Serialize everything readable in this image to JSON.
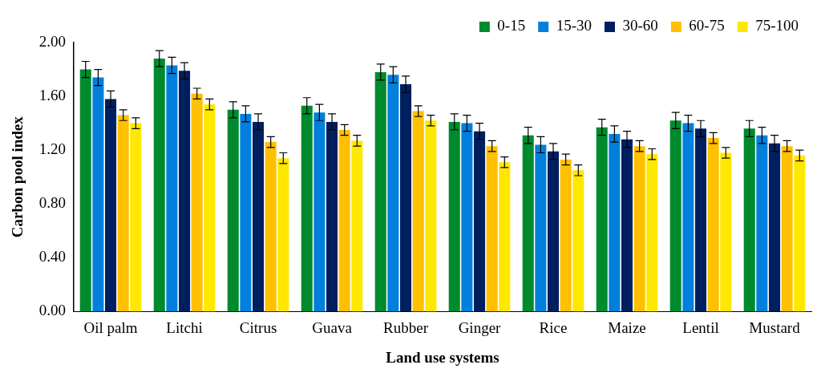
{
  "chart_data": {
    "type": "bar",
    "xlabel": "Land use systems",
    "ylabel": "Carbon pool index",
    "categories": [
      "Oil palm",
      "Litchi",
      "Citrus",
      "Guava",
      "Rubber",
      "Ginger",
      "Rice",
      "Maize",
      "Lentil",
      "Mustard"
    ],
    "series": [
      {
        "name": "0-15",
        "color": "#008a2e",
        "values": [
          1.8,
          1.88,
          1.5,
          1.53,
          1.78,
          1.41,
          1.31,
          1.37,
          1.42,
          1.36
        ],
        "errors": [
          0.06,
          0.06,
          0.06,
          0.06,
          0.06,
          0.06,
          0.06,
          0.06,
          0.06,
          0.06
        ]
      },
      {
        "name": "15-30",
        "color": "#0080dc",
        "values": [
          1.74,
          1.83,
          1.47,
          1.48,
          1.76,
          1.4,
          1.24,
          1.32,
          1.4,
          1.31
        ],
        "errors": [
          0.06,
          0.06,
          0.06,
          0.06,
          0.06,
          0.06,
          0.06,
          0.06,
          0.06,
          0.06
        ]
      },
      {
        "name": "30-60",
        "color": "#001f5f",
        "values": [
          1.58,
          1.79,
          1.41,
          1.41,
          1.69,
          1.34,
          1.19,
          1.28,
          1.36,
          1.25
        ],
        "errors": [
          0.06,
          0.06,
          0.06,
          0.06,
          0.06,
          0.06,
          0.06,
          0.06,
          0.06,
          0.06
        ]
      },
      {
        "name": "60-75",
        "color": "#ffc000",
        "values": [
          1.46,
          1.62,
          1.26,
          1.35,
          1.49,
          1.23,
          1.13,
          1.23,
          1.29,
          1.23
        ],
        "errors": [
          0.04,
          0.04,
          0.04,
          0.04,
          0.04,
          0.04,
          0.04,
          0.04,
          0.04,
          0.04
        ]
      },
      {
        "name": "75-100",
        "color": "#ffe800",
        "values": [
          1.4,
          1.54,
          1.14,
          1.27,
          1.42,
          1.11,
          1.05,
          1.17,
          1.18,
          1.16
        ],
        "errors": [
          0.04,
          0.04,
          0.04,
          0.04,
          0.04,
          0.04,
          0.04,
          0.04,
          0.04,
          0.04
        ]
      }
    ],
    "ylim": [
      0,
      2
    ],
    "yticks": [
      {
        "value": 0,
        "label": "0.00"
      },
      {
        "value": 0.4,
        "label": "0.40"
      },
      {
        "value": 0.8,
        "label": "0.80"
      },
      {
        "value": 1.2,
        "label": "1.20"
      },
      {
        "value": 1.6,
        "label": "1.60"
      },
      {
        "value": 2,
        "label": "2.00"
      }
    ],
    "legend": "top right",
    "grid": false
  }
}
